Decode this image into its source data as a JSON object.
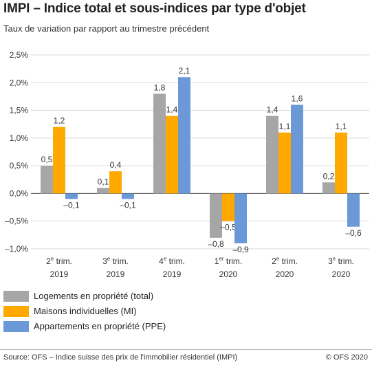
{
  "header": {
    "title": "IMPI – Indice total et sous-indices par type d'objet",
    "subtitle": "Taux de variation par rapport au trimestre précédent"
  },
  "footer": {
    "source": "Source: OFS – Indice suisse des prix de l'immobilier résidentiel (IMPI)",
    "copyright": "© OFS 2020"
  },
  "chart_data": {
    "type": "bar",
    "title": "IMPI – Indice total et sous-indices par type d'objet",
    "subtitle": "Taux de variation par rapport au trimestre précédent",
    "categories": [
      {
        "num": "2",
        "sup": "e",
        "rest": " trim.",
        "year": "2019"
      },
      {
        "num": "3",
        "sup": "e",
        "rest": " trim.",
        "year": "2019"
      },
      {
        "num": "4",
        "sup": "e",
        "rest": " trim.",
        "year": "2019"
      },
      {
        "num": "1",
        "sup": "er",
        "rest": " trim.",
        "year": "2020"
      },
      {
        "num": "2",
        "sup": "e",
        "rest": " trim.",
        "year": "2020"
      },
      {
        "num": "3",
        "sup": "e",
        "rest": " trim.",
        "year": "2020"
      }
    ],
    "series": [
      {
        "name": "Logements en propriété (total)",
        "color": "#a6a6a6",
        "values": [
          0.5,
          0.1,
          1.8,
          -0.8,
          1.4,
          0.2
        ],
        "labels": [
          "0,5",
          "0,1",
          "1,8",
          "–0,8",
          "1,4",
          "0,2"
        ]
      },
      {
        "name": "Maisons individuelles (MI)",
        "color": "#ffa800",
        "values": [
          1.2,
          0.4,
          1.4,
          -0.5,
          1.1,
          1.1
        ],
        "labels": [
          "1,2",
          "0,4",
          "1,4",
          "–0,5",
          "1,1",
          "1,1"
        ]
      },
      {
        "name": "Appartements en propriété (PPE)",
        "color": "#6b98d6",
        "values": [
          -0.1,
          -0.1,
          2.1,
          -0.9,
          1.6,
          -0.6
        ],
        "labels": [
          "–0,1",
          "–0,1",
          "2,1",
          "–0,9",
          "1,6",
          "–0,6"
        ]
      }
    ],
    "yticks": [
      {
        "v": 2.5,
        "label": "2,5%"
      },
      {
        "v": 2.0,
        "label": "2,0%"
      },
      {
        "v": 1.5,
        "label": "1,5%"
      },
      {
        "v": 1.0,
        "label": "1,0%"
      },
      {
        "v": 0.5,
        "label": "0,5%"
      },
      {
        "v": 0.0,
        "label": "0,0%"
      },
      {
        "v": -0.5,
        "label": "–0,5%"
      },
      {
        "v": -1.0,
        "label": "–1,0%"
      }
    ],
    "ylim": [
      -1.0,
      2.5
    ],
    "grid": true,
    "legend_position": "bottom"
  }
}
